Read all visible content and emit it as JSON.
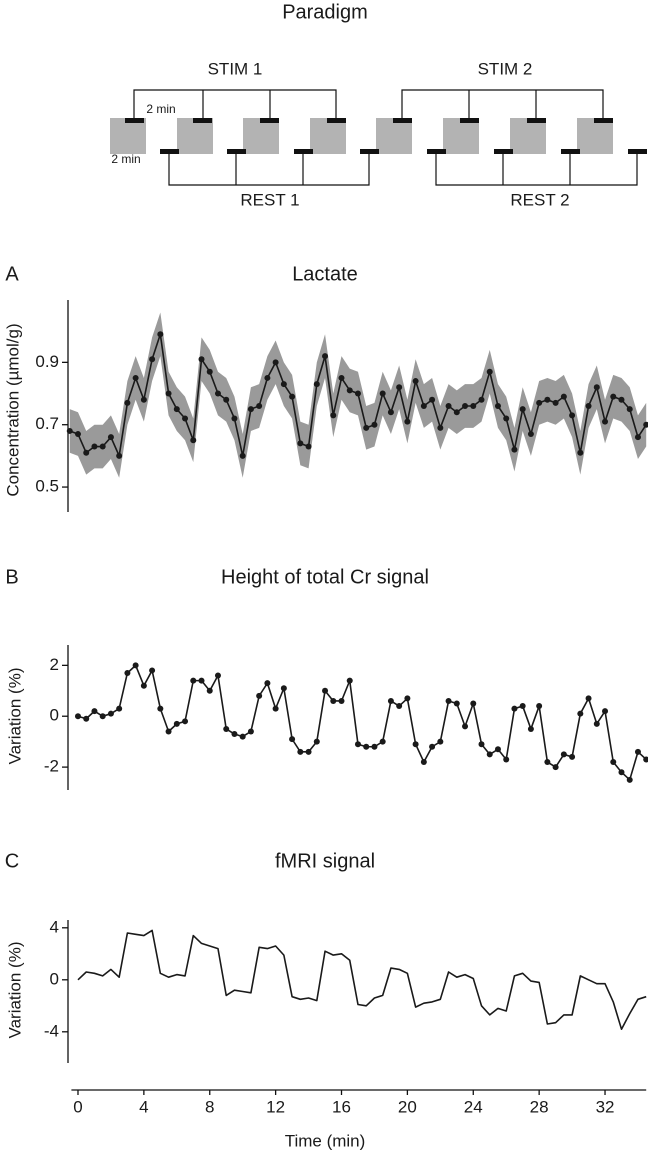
{
  "paradigm": {
    "title": "Paradigm",
    "stim1": "STIM 1",
    "stim2": "STIM 2",
    "rest1": "REST 1",
    "rest2": "REST 2",
    "stim_duration": "2 min",
    "rest_duration": "2 min"
  },
  "chart_data": [
    {
      "type": "line",
      "panel": "A",
      "title": "Lactate",
      "ylabel": "Concentration (µmol/g)",
      "x": [
        -0.5,
        0,
        0.5,
        1,
        1.5,
        2,
        2.5,
        3,
        3.5,
        4,
        4.5,
        5,
        5.5,
        6,
        6.5,
        7,
        7.5,
        8,
        8.5,
        9,
        9.5,
        10,
        10.5,
        11,
        11.5,
        12,
        12.5,
        13,
        13.5,
        14,
        14.5,
        15,
        15.5,
        16,
        16.5,
        17,
        17.5,
        18,
        18.5,
        19,
        19.5,
        20,
        20.5,
        21,
        21.5,
        22,
        22.5,
        23,
        23.5,
        24,
        24.5,
        25,
        25.5,
        26,
        26.5,
        27,
        27.5,
        28,
        28.5,
        29,
        29.5,
        30,
        30.5,
        31,
        31.5,
        32,
        32.5,
        33,
        33.5,
        34,
        34.5
      ],
      "series": [
        {
          "color": "#1a1a1a",
          "band_color": "#9a9a9a",
          "error": 0.07,
          "markers": true,
          "values": [
            0.68,
            0.67,
            0.61,
            0.63,
            0.63,
            0.66,
            0.6,
            0.77,
            0.85,
            0.78,
            0.91,
            0.99,
            0.8,
            0.75,
            0.72,
            0.65,
            0.91,
            0.87,
            0.8,
            0.78,
            0.72,
            0.6,
            0.75,
            0.76,
            0.85,
            0.9,
            0.83,
            0.79,
            0.64,
            0.63,
            0.83,
            0.92,
            0.73,
            0.85,
            0.81,
            0.8,
            0.69,
            0.7,
            0.8,
            0.74,
            0.82,
            0.71,
            0.84,
            0.76,
            0.78,
            0.69,
            0.76,
            0.74,
            0.76,
            0.76,
            0.78,
            0.87,
            0.76,
            0.72,
            0.62,
            0.75,
            0.67,
            0.77,
            0.78,
            0.77,
            0.79,
            0.73,
            0.61,
            0.76,
            0.82,
            0.71,
            0.79,
            0.78,
            0.75,
            0.66,
            0.7
          ]
        }
      ],
      "xlim": [
        -0.4,
        34.5
      ],
      "ylim": [
        0.42,
        1.1
      ],
      "yticks": [
        0.5,
        0.7,
        0.9
      ]
    },
    {
      "type": "line",
      "panel": "B",
      "title": "Height of total Cr signal",
      "ylabel": "Variation  (%)",
      "x": [
        0,
        0.5,
        1,
        1.5,
        2,
        2.5,
        3,
        3.5,
        4,
        4.5,
        5,
        5.5,
        6,
        6.5,
        7,
        7.5,
        8,
        8.5,
        9,
        9.5,
        10,
        10.5,
        11,
        11.5,
        12,
        12.5,
        13,
        13.5,
        14,
        14.5,
        15,
        15.5,
        16,
        16.5,
        17,
        17.5,
        18,
        18.5,
        19,
        19.5,
        20,
        20.5,
        21,
        21.5,
        22,
        22.5,
        23,
        23.5,
        24,
        24.5,
        25,
        25.5,
        26,
        26.5,
        27,
        27.5,
        28,
        28.5,
        29,
        29.5,
        30,
        30.5,
        31,
        31.5,
        32,
        32.5,
        33,
        33.5,
        34,
        34.5
      ],
      "series": [
        {
          "color": "#1a1a1a",
          "markers": true,
          "values": [
            0,
            -0.1,
            0.2,
            0,
            0.1,
            0.3,
            1.7,
            2.0,
            1.2,
            1.8,
            0.3,
            -0.6,
            -0.3,
            -0.2,
            1.4,
            1.4,
            1.0,
            1.6,
            -0.5,
            -0.7,
            -0.8,
            -0.6,
            0.8,
            1.3,
            0.3,
            1.1,
            -0.9,
            -1.4,
            -1.4,
            -1.0,
            1.0,
            0.6,
            0.6,
            1.4,
            -1.1,
            -1.2,
            -1.2,
            -1.0,
            0.6,
            0.4,
            0.7,
            -1.1,
            -1.8,
            -1.2,
            -1.0,
            0.6,
            0.5,
            -0.4,
            0.5,
            -1.1,
            -1.5,
            -1.3,
            -1.7,
            0.3,
            0.4,
            -0.5,
            0.4,
            -1.8,
            -2.0,
            -1.5,
            -1.6,
            0.1,
            0.7,
            -0.3,
            0.2,
            -1.8,
            -2.2,
            -2.5,
            -1.4,
            -1.7
          ]
        }
      ],
      "xlim": [
        -0.4,
        34.5
      ],
      "ylim": [
        -2.9,
        2.8
      ],
      "yticks": [
        -2,
        0,
        2
      ]
    },
    {
      "type": "line",
      "panel": "C",
      "title": "fMRI signal",
      "ylabel": "Variation  (%)",
      "xlabel": "Time (min)",
      "x": [
        0,
        0.5,
        1,
        1.5,
        2,
        2.5,
        3,
        3.5,
        4,
        4.5,
        5,
        5.5,
        6,
        6.5,
        7,
        7.5,
        8,
        8.5,
        9,
        9.5,
        10,
        10.5,
        11,
        11.5,
        12,
        12.5,
        13,
        13.5,
        14,
        14.5,
        15,
        15.5,
        16,
        16.5,
        17,
        17.5,
        18,
        18.5,
        19,
        19.5,
        20,
        20.5,
        21,
        21.5,
        22,
        22.5,
        23,
        23.5,
        24,
        24.5,
        25,
        25.5,
        26,
        26.5,
        27,
        27.5,
        28,
        28.5,
        29,
        29.5,
        30,
        30.5,
        31,
        31.5,
        32,
        32.5,
        33,
        33.5,
        34,
        34.5
      ],
      "series": [
        {
          "color": "#1a1a1a",
          "markers": false,
          "values": [
            0,
            0.6,
            0.5,
            0.3,
            0.8,
            0.2,
            3.6,
            3.5,
            3.4,
            3.8,
            0.5,
            0.2,
            0.4,
            0.3,
            3.4,
            2.8,
            2.6,
            2.4,
            -1.2,
            -0.8,
            -0.9,
            -1.0,
            2.5,
            2.4,
            2.6,
            1.9,
            -1.3,
            -1.5,
            -1.4,
            -1.6,
            2.2,
            1.9,
            2.0,
            1.5,
            -1.9,
            -2.0,
            -1.4,
            -1.2,
            0.9,
            0.8,
            0.5,
            -2.1,
            -1.8,
            -1.7,
            -1.5,
            0.6,
            0.2,
            0.4,
            0.1,
            -2.0,
            -2.7,
            -2.2,
            -2.4,
            0.3,
            0.5,
            -0.1,
            -0.2,
            -3.4,
            -3.3,
            -2.7,
            -2.7,
            0.3,
            0.0,
            -0.3,
            -0.3,
            -1.7,
            -3.8,
            -2.6,
            -1.5,
            -1.3
          ]
        }
      ],
      "xlim": [
        -0.4,
        34.5
      ],
      "ylim": [
        -6.4,
        4.6
      ],
      "yticks": [
        -4,
        0,
        4
      ],
      "xticks": [
        0,
        4,
        8,
        12,
        16,
        20,
        24,
        28,
        32
      ]
    }
  ]
}
